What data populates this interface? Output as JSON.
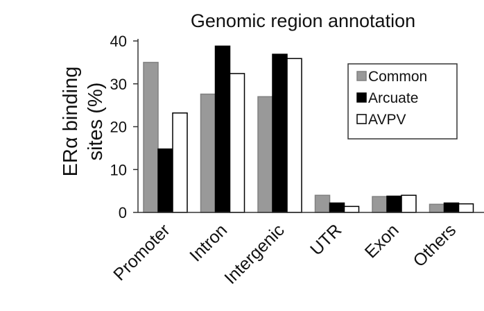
{
  "chart_data": {
    "type": "bar",
    "title": "Genomic region annotation",
    "ylabel_line1": "ERα binding",
    "ylabel_line2": "sites (%)",
    "xlabel": "",
    "categories": [
      "Promoter",
      "Intron",
      "Intergenic",
      "UTR",
      "Exon",
      "Others"
    ],
    "series": [
      {
        "name": "Common",
        "values": [
          35,
          27.6,
          27,
          4,
          3.7,
          1.9
        ],
        "color": "#999999"
      },
      {
        "name": "Arcuate",
        "values": [
          14.8,
          38.8,
          36.9,
          2.2,
          3.8,
          2.2
        ],
        "color": "#000000"
      },
      {
        "name": "AVPV",
        "values": [
          23.2,
          32.4,
          35.9,
          1.4,
          4,
          2
        ],
        "color": "#ffffff"
      }
    ],
    "yticks": [
      0,
      10,
      20,
      30,
      40
    ],
    "ylim": [
      0,
      40
    ],
    "grid": false,
    "legend_position": "top-right"
  }
}
